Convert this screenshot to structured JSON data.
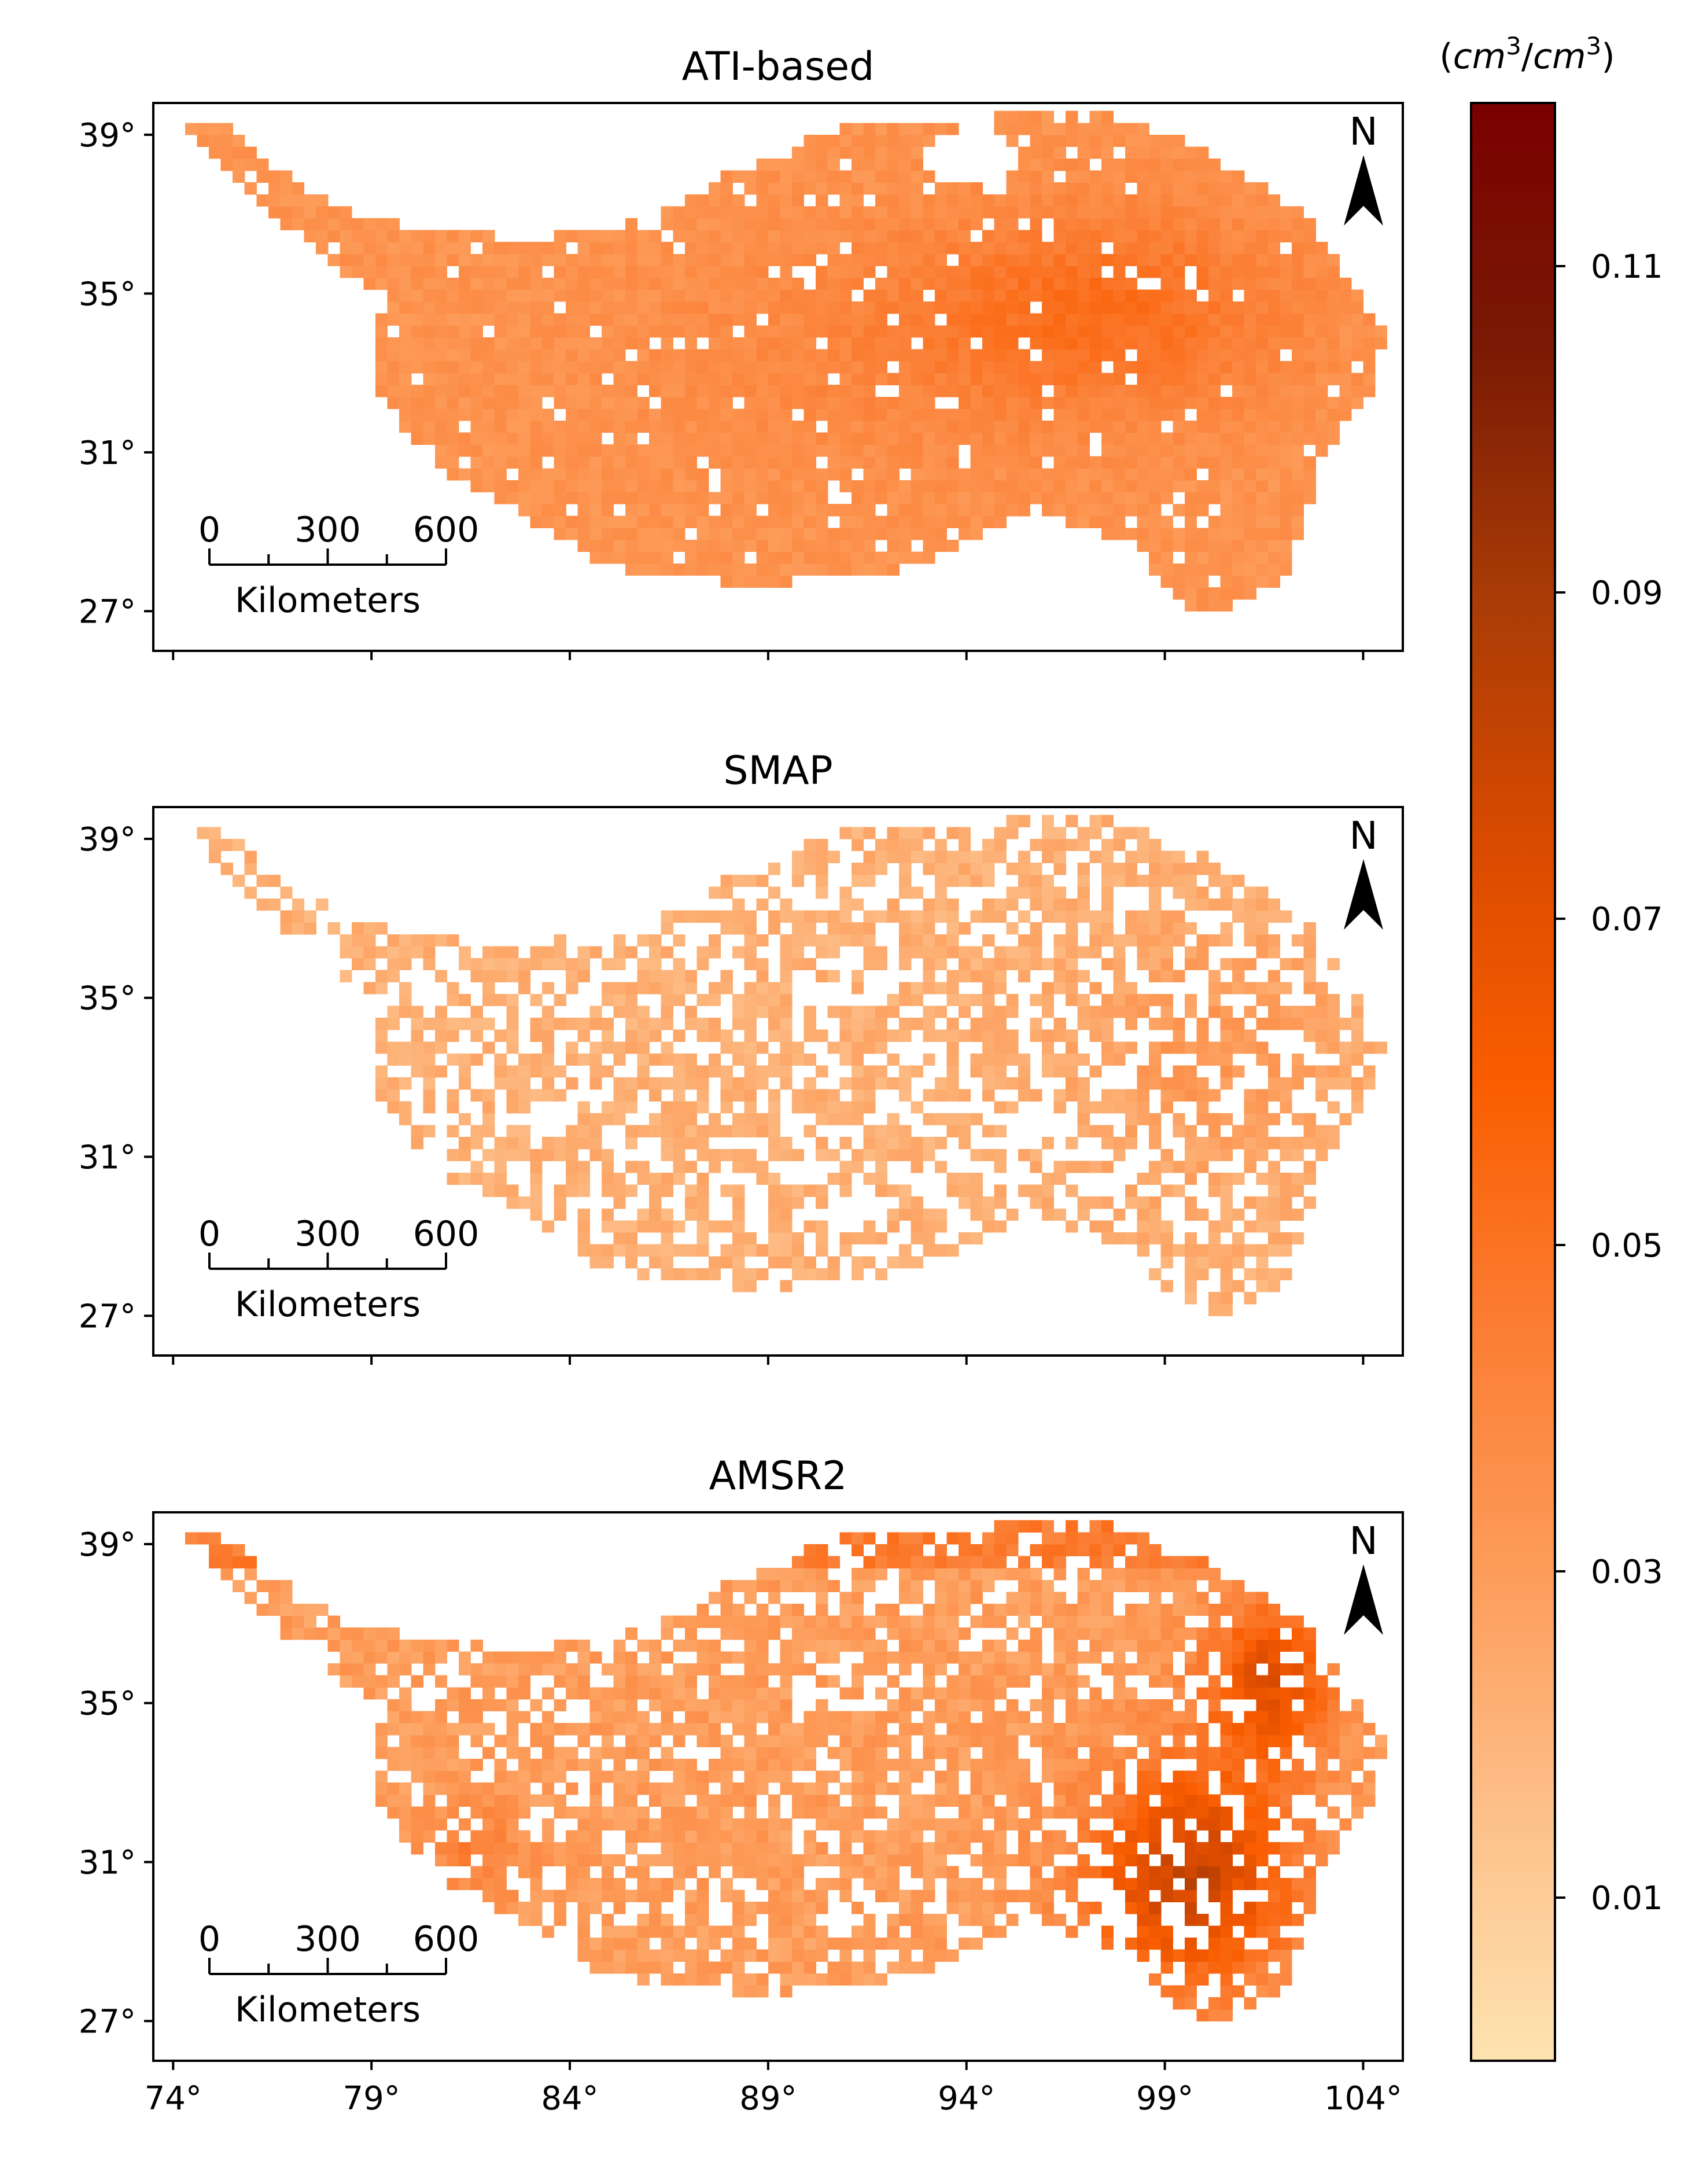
{
  "figure": {
    "panels": [
      {
        "title": "ATI-based",
        "dataset": "ATI",
        "style": "ati"
      },
      {
        "title": "SMAP",
        "dataset": "SMAP",
        "style": "smap"
      },
      {
        "title": "AMSR2",
        "dataset": "AMSR2",
        "style": "amsr2"
      }
    ],
    "y_ticks": [
      {
        "value": 39,
        "label": "39°"
      },
      {
        "value": 35,
        "label": "35°"
      },
      {
        "value": 31,
        "label": "31°"
      },
      {
        "value": 27,
        "label": "27°"
      }
    ],
    "x_ticks": [
      {
        "value": 74,
        "label": "74°"
      },
      {
        "value": 79,
        "label": "79°"
      },
      {
        "value": 84,
        "label": "84°"
      },
      {
        "value": 89,
        "label": "89°"
      },
      {
        "value": 94,
        "label": "94°"
      },
      {
        "value": 99,
        "label": "99°"
      },
      {
        "value": 104,
        "label": "104°"
      }
    ],
    "lon_range": [
      73.5,
      105
    ],
    "lat_range": [
      26,
      39.8
    ],
    "north_arrow": {
      "label": "N"
    },
    "scale_bar": {
      "labels": [
        "0",
        "300",
        "600"
      ],
      "units": "Kilometers"
    },
    "colorbar": {
      "unit_label": "(cm³/cm³)",
      "unit_base": "cm",
      "unit_exp": "3",
      "range": [
        0,
        0.12
      ],
      "ticks": [
        {
          "value": 0.01,
          "label": "0.01"
        },
        {
          "value": 0.03,
          "label": "0.03"
        },
        {
          "value": 0.05,
          "label": "0.05"
        },
        {
          "value": 0.07,
          "label": "0.07"
        },
        {
          "value": 0.09,
          "label": "0.09"
        },
        {
          "value": 0.11,
          "label": "0.11"
        }
      ],
      "colors": [
        "#fde3b0",
        "#fdc08a",
        "#fd9c5a",
        "#fb7d33",
        "#fa5d00",
        "#d84a00",
        "#a83b06",
        "#7a1a05",
        "#7a0000"
      ]
    }
  }
}
